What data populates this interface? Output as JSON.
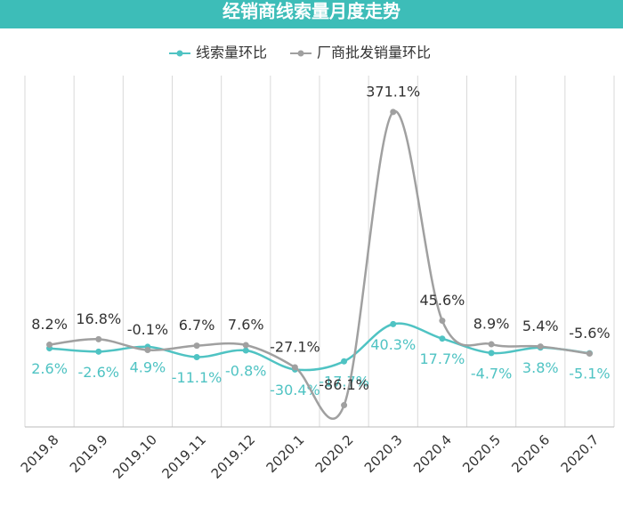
{
  "chart_data": {
    "type": "line",
    "title": "经销商线索量月度走势",
    "categories": [
      "2019.8",
      "2019.9",
      "2019.10",
      "2019.11",
      "2019.12",
      "2020.1",
      "2020.2",
      "2020.3",
      "2020.4",
      "2020.5",
      "2020.6",
      "2020.7"
    ],
    "series": [
      {
        "name": "线索量环比",
        "color": "#4fc3c3",
        "values": [
          2.6,
          -2.6,
          4.9,
          -11.1,
          -0.8,
          -30.4,
          -17.7,
          40.3,
          17.7,
          -4.7,
          3.8,
          -5.1
        ],
        "value_labels": [
          "2.6%",
          "-2.6%",
          "4.9%",
          "-11.1%",
          "-0.8%",
          "-30.4%",
          "-17.7%",
          "40.3%",
          "17.7%",
          "-4.7%",
          "3.8%",
          "-5.1%"
        ]
      },
      {
        "name": "厂商批发销量环比",
        "color": "#a0a0a0",
        "values": [
          8.2,
          16.8,
          -0.1,
          6.7,
          7.6,
          -27.1,
          -86.1,
          371.1,
          45.6,
          8.9,
          5.4,
          -5.6
        ],
        "value_labels": [
          "8.2%",
          "16.8%",
          "-0.1%",
          "6.7%",
          "7.6%",
          "-27.1%",
          "-86.1%",
          "371.1%",
          "45.6%",
          "8.9%",
          "5.4%",
          "-5.6%"
        ]
      }
    ],
    "ylim": [
      -120,
      400
    ]
  }
}
